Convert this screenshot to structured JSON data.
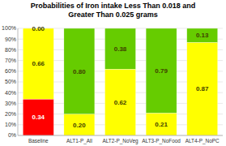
{
  "chart_data": {
    "type": "bar",
    "stacked": true,
    "title": "Probabilities of Iron intake Less Than 0.018 and\nGreater Than 0.025 grams",
    "categories": [
      "Baseline",
      "ALT1-P_All",
      "ALT2-P_NoVeg",
      "ALT3-P_NoFood",
      "ALT4-P_NoPC"
    ],
    "series": [
      {
        "values": [
          0.34,
          0.2,
          0.62,
          0.21,
          0.87
        ],
        "value_labels": [
          "0.34",
          "0.20",
          "0.62",
          "0.21",
          "0.87"
        ],
        "colors": [
          "#ff0000",
          "#ffff00",
          "#ffff00",
          "#ffff00",
          "#ffff00"
        ]
      },
      {
        "values": [
          0.66,
          0.8,
          0.38,
          0.79,
          0.0
        ],
        "value_labels": [
          "0.66",
          "0.80",
          "0.38",
          "0.79",
          null
        ],
        "colors": [
          "#ffff00",
          "#66cc00",
          "#66cc00",
          "#66cc00",
          "#ffff00"
        ]
      },
      {
        "values": [
          0.0,
          0.0,
          0.0,
          0.0,
          0.13
        ],
        "value_labels": [
          "0.00",
          null,
          null,
          null,
          "0.13"
        ],
        "colors": [
          "#ffff00",
          "#66cc00",
          "#66cc00",
          "#66cc00",
          "#66cc00"
        ]
      }
    ],
    "data_labels": true,
    "ylim": [
      0,
      1.0
    ],
    "yticks": [
      {
        "value": 0.0,
        "label": "0%"
      },
      {
        "value": 0.1,
        "label": "10%"
      },
      {
        "value": 0.2,
        "label": "20%"
      },
      {
        "value": 0.3,
        "label": "30%"
      },
      {
        "value": 0.4,
        "label": "40%"
      },
      {
        "value": 0.5,
        "label": "50%"
      },
      {
        "value": 0.6,
        "label": "60%"
      },
      {
        "value": 0.7,
        "label": "70%"
      },
      {
        "value": 0.8,
        "label": "80%"
      },
      {
        "value": 0.9,
        "label": "90%"
      },
      {
        "value": 1.0,
        "label": "100%"
      }
    ],
    "grid": true
  }
}
